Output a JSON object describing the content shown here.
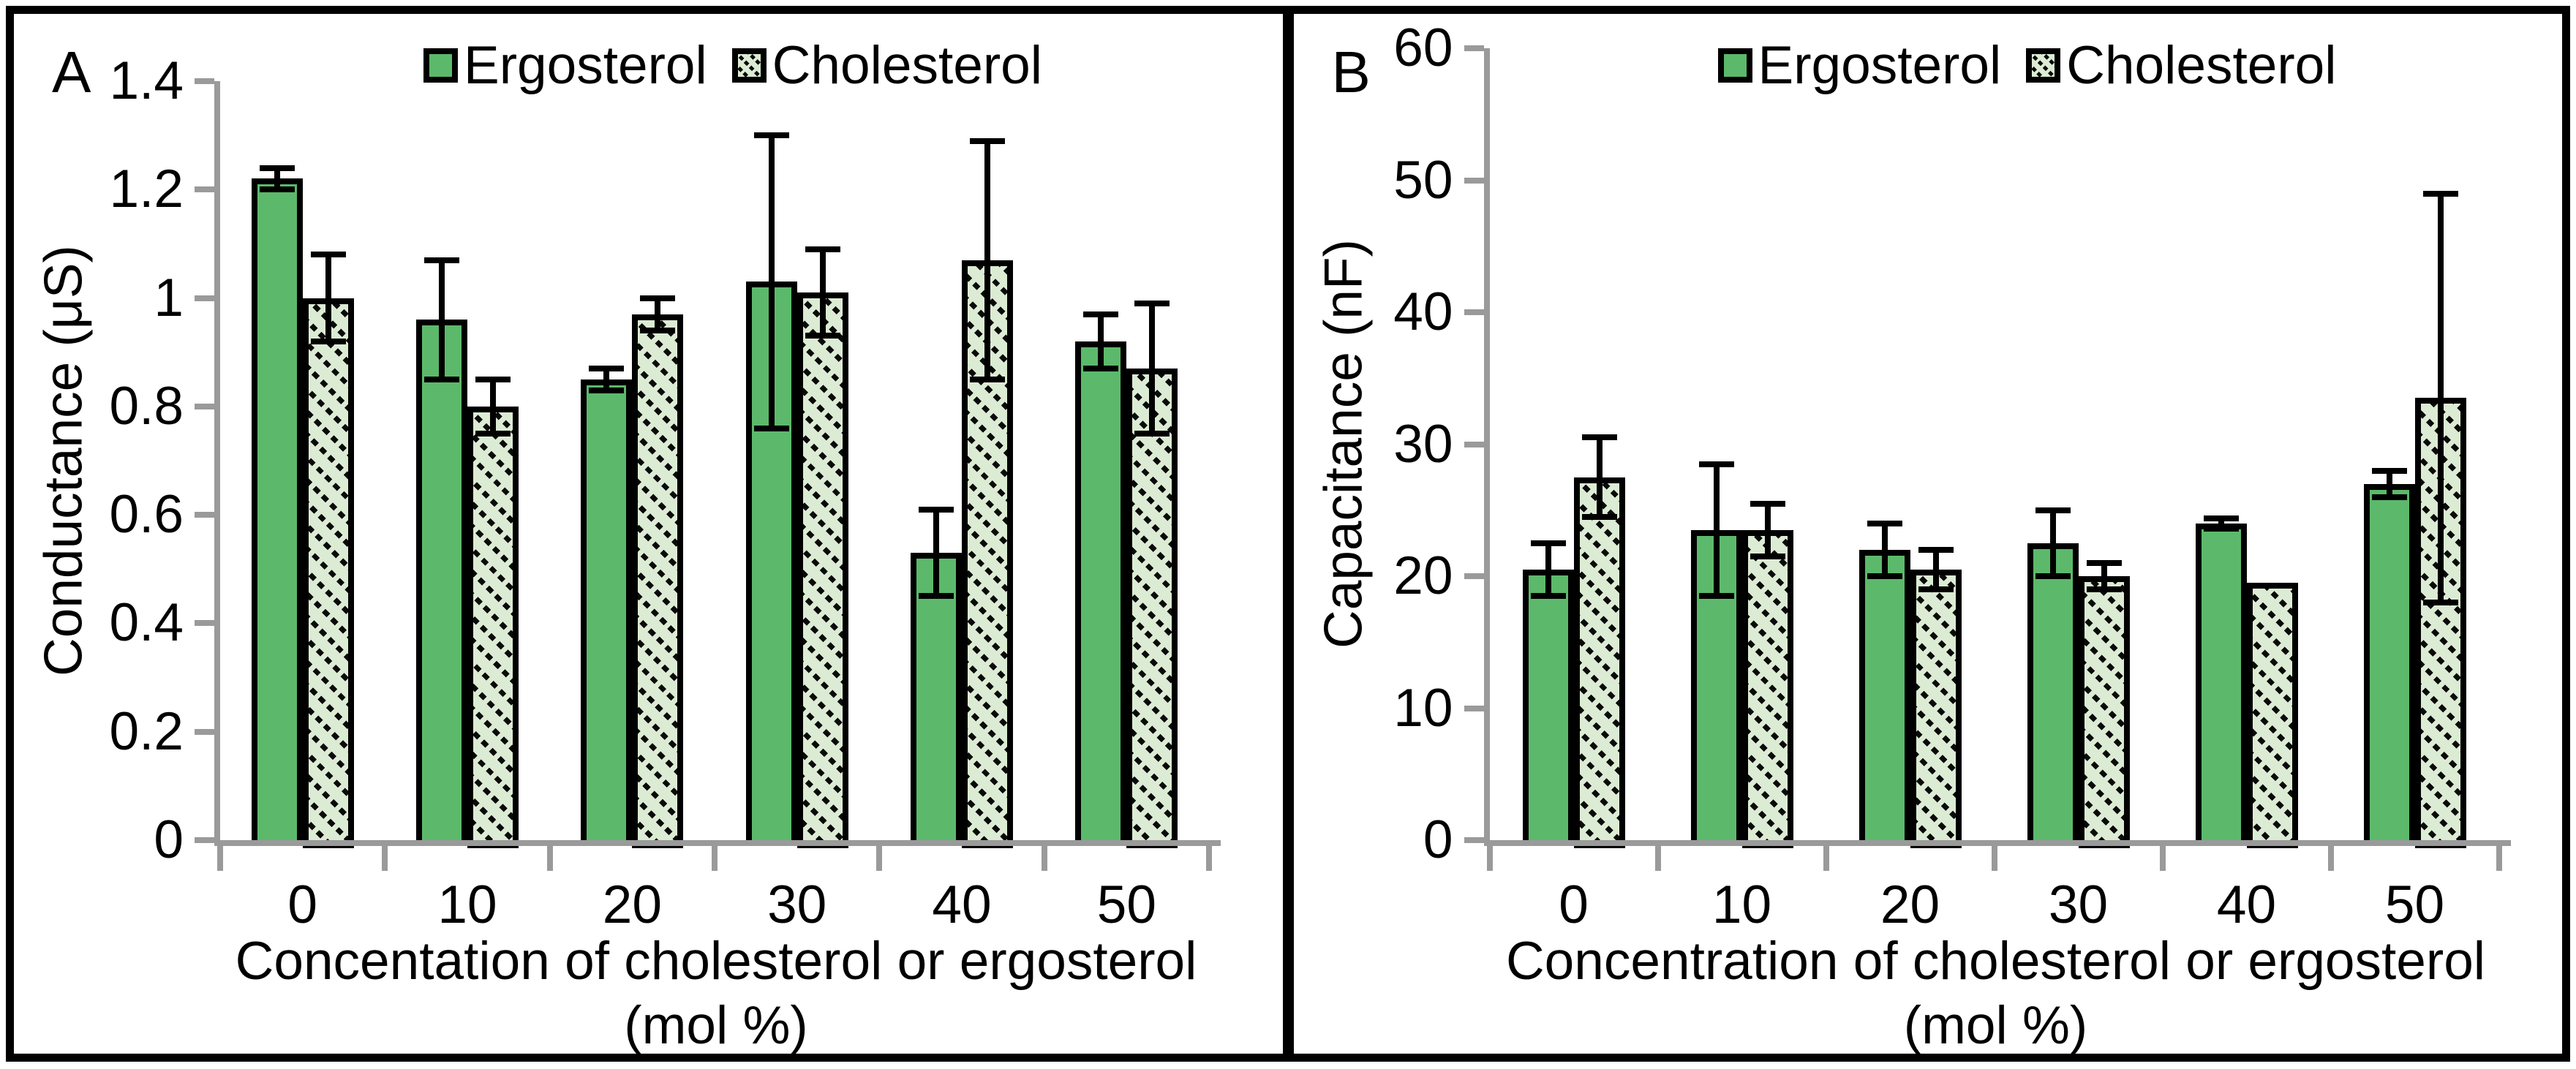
{
  "colors": {
    "ergosterol_fill": "#5CB96B",
    "cholesterol_fill_bg": "#DCEBD3",
    "bar_outline": "#000000",
    "axis_line": "#9A9A9A",
    "text": "#000000",
    "figure_border": "#000000"
  },
  "chart_data": [
    {
      "type": "bar",
      "panel": "A",
      "title": "",
      "ylabel": "Conductance (μS)",
      "xlabel_line1": "Concentation of cholesterol or ergosterol",
      "xlabel_line2": "(mol %)",
      "ylim": [
        0,
        1.4
      ],
      "ytick_labels": [
        "1.4",
        "1.2",
        "1",
        "0.8",
        "0.6",
        "0.4",
        "0.2",
        "0"
      ],
      "categories": [
        "0",
        "10",
        "20",
        "30",
        "40",
        "50"
      ],
      "legend": [
        "Ergosterol",
        "Cholesterol"
      ],
      "legend_position": "top-center",
      "grid": "off",
      "error_bars": true,
      "series": [
        {
          "name": "Ergosterol",
          "values": [
            1.22,
            0.96,
            0.85,
            1.03,
            0.53,
            0.92
          ],
          "errors": [
            0.02,
            0.11,
            0.02,
            0.27,
            0.08,
            0.05
          ]
        },
        {
          "name": "Cholesterol",
          "values": [
            1.0,
            0.8,
            0.97,
            1.01,
            1.07,
            0.87
          ],
          "errors": [
            0.08,
            0.05,
            0.03,
            0.08,
            0.22,
            0.12
          ]
        }
      ]
    },
    {
      "type": "bar",
      "panel": "B",
      "title": "",
      "ylabel": "Capacitance (nF)",
      "xlabel_line1": "Concentration of cholesterol or ergosterol",
      "xlabel_line2": "(mol %)",
      "ylim": [
        0,
        60
      ],
      "ytick_labels": [
        "60",
        "50",
        "40",
        "30",
        "20",
        "10",
        "0"
      ],
      "categories": [
        "0",
        "10",
        "20",
        "30",
        "40",
        "50"
      ],
      "legend": [
        "Ergosterol",
        "Cholesterol"
      ],
      "legend_position": "top-center",
      "grid": "off",
      "error_bars": true,
      "series": [
        {
          "name": "Ergosterol",
          "values": [
            20.5,
            23.5,
            22.0,
            22.5,
            24.0,
            27.0
          ],
          "errors": [
            2.0,
            5.0,
            2.0,
            2.5,
            0.4,
            1.0
          ]
        },
        {
          "name": "Cholesterol",
          "values": [
            27.5,
            23.5,
            20.5,
            20.0,
            19.5,
            33.5
          ],
          "errors": [
            3.0,
            2.0,
            1.5,
            1.0,
            0.0,
            15.5
          ]
        }
      ]
    }
  ]
}
